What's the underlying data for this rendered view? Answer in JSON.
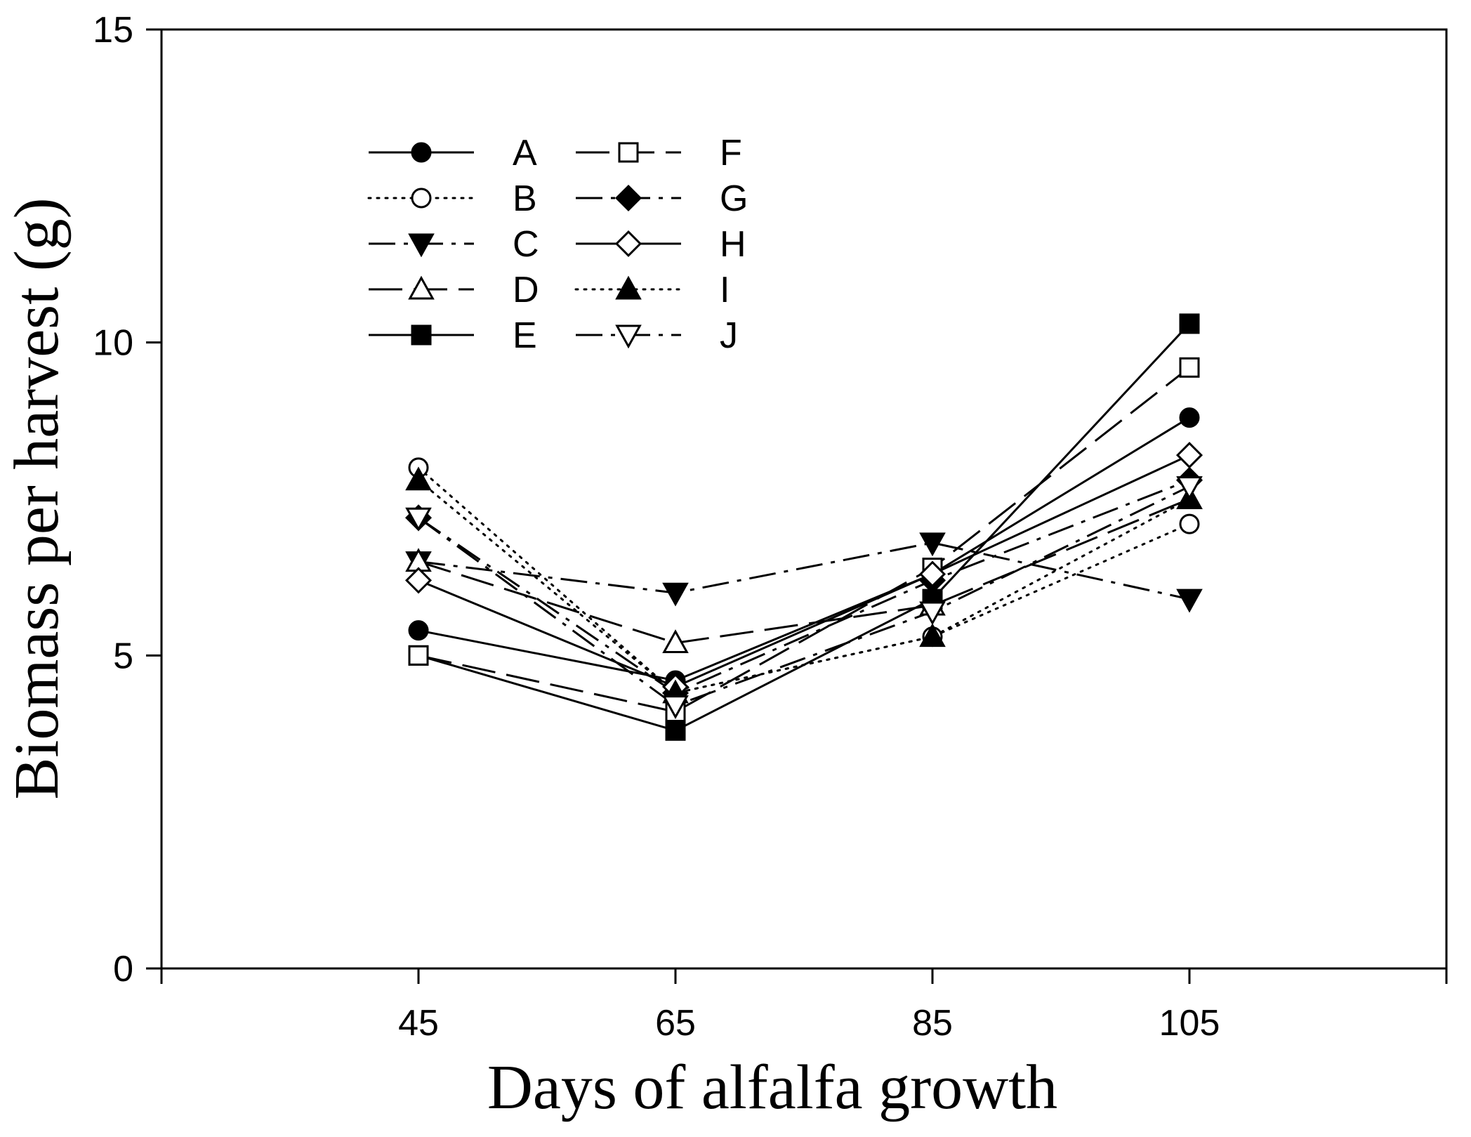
{
  "chart_data": {
    "type": "line",
    "title": "",
    "xlabel": "Days of alfalfa growth",
    "ylabel": "Biomass per harvest (g)",
    "x": [
      45,
      65,
      85,
      105
    ],
    "x_tick_labels": [
      "45",
      "65",
      "85",
      "105"
    ],
    "xlim": [
      25,
      125
    ],
    "ylim": [
      0,
      15
    ],
    "y_ticks": [
      0,
      5,
      10,
      15
    ],
    "y_tick_labels": [
      "0",
      "5",
      "10",
      "15"
    ],
    "grid": false,
    "legend_position": "top-left",
    "series": [
      {
        "name": "A",
        "marker": "circle",
        "filled": true,
        "dash": "solid",
        "values": [
          5.4,
          4.6,
          6.3,
          8.8
        ]
      },
      {
        "name": "B",
        "marker": "circle",
        "filled": false,
        "dash": "dotted",
        "values": [
          8.0,
          4.4,
          5.3,
          7.1
        ]
      },
      {
        "name": "C",
        "marker": "triangle-down",
        "filled": true,
        "dash": "dashdot",
        "values": [
          6.5,
          6.0,
          6.8,
          5.9
        ]
      },
      {
        "name": "D",
        "marker": "triangle-up",
        "filled": false,
        "dash": "longdash",
        "values": [
          6.5,
          5.2,
          5.8,
          7.5
        ]
      },
      {
        "name": "E",
        "marker": "square",
        "filled": true,
        "dash": "solid",
        "values": [
          5.0,
          3.8,
          5.9,
          10.3
        ]
      },
      {
        "name": "F",
        "marker": "square",
        "filled": false,
        "dash": "longdash",
        "values": [
          5.0,
          4.1,
          6.4,
          9.6
        ]
      },
      {
        "name": "G",
        "marker": "diamond",
        "filled": true,
        "dash": "dashdot",
        "values": [
          7.2,
          4.4,
          6.2,
          7.8
        ]
      },
      {
        "name": "H",
        "marker": "diamond",
        "filled": false,
        "dash": "solid",
        "values": [
          6.2,
          4.5,
          6.3,
          8.2
        ]
      },
      {
        "name": "I",
        "marker": "triangle-up",
        "filled": true,
        "dash": "dotted",
        "values": [
          7.8,
          4.4,
          5.3,
          7.5
        ]
      },
      {
        "name": "J",
        "marker": "triangle-down",
        "filled": false,
        "dash": "dashdot",
        "values": [
          7.2,
          4.2,
          5.7,
          7.7
        ]
      }
    ]
  }
}
